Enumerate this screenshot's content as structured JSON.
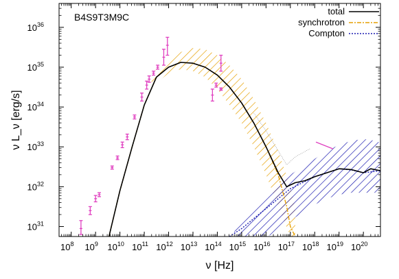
{
  "chart_data": {
    "type": "line",
    "annotation": "B4S9T3M9C",
    "xlabel": "ν [Hz]",
    "ylabel": "ν L_ν [erg/s]",
    "xscale": "log",
    "yscale": "log",
    "xlim_log10": [
      7.5,
      20.7
    ],
    "ylim_log10": [
      30.75,
      36.6
    ],
    "xticks_log10": [
      8,
      9,
      10,
      11,
      12,
      13,
      14,
      15,
      16,
      17,
      18,
      19,
      20
    ],
    "yticks_log10": [
      31,
      32,
      33,
      34,
      35,
      36
    ],
    "tick_base": "10",
    "grid": false,
    "legend_position": "top-right",
    "colors": {
      "total": "#000000",
      "synchrotron": "#e69f00",
      "compton": "#1a1ab0",
      "data": "#e040c0",
      "hatch_sync": "#e69f00",
      "hatch_compton": "#1a1ab0"
    },
    "series": [
      {
        "name": "total",
        "style": "solid",
        "x_log10": [
          9.55,
          10.0,
          10.5,
          11.0,
          11.5,
          12.0,
          12.5,
          13.0,
          13.5,
          14.0,
          14.5,
          15.0,
          15.5,
          16.0,
          16.5,
          16.85,
          17.2,
          17.6,
          18.0,
          18.5,
          19.0,
          19.5,
          20.0,
          20.3,
          20.7
        ],
        "y_log10": [
          30.75,
          31.9,
          33.0,
          34.05,
          34.75,
          35.0,
          35.12,
          35.1,
          35.0,
          34.8,
          34.5,
          34.1,
          33.6,
          33.0,
          32.35,
          32.0,
          32.1,
          32.15,
          32.25,
          32.35,
          32.45,
          32.43,
          32.35,
          32.45,
          32.4
        ]
      },
      {
        "name": "synchrotron",
        "style": "dash-dot",
        "x_log10": [
          9.55,
          10.0,
          10.5,
          11.0,
          11.5,
          12.0,
          12.5,
          13.0,
          13.5,
          14.0,
          14.5,
          15.0,
          15.5,
          16.0,
          16.5,
          16.85,
          17.0,
          17.2
        ],
        "y_log10": [
          30.75,
          31.9,
          33.0,
          34.05,
          34.75,
          35.0,
          35.12,
          35.1,
          35.0,
          34.8,
          34.5,
          34.1,
          33.6,
          33.0,
          32.3,
          31.5,
          31.0,
          30.75
        ]
      },
      {
        "name": "Compton",
        "style": "dotted",
        "x_log10": [
          14.5,
          15.0,
          15.5,
          16.0,
          16.5,
          17.0,
          17.5,
          18.0,
          18.5,
          19.0,
          19.5,
          20.0,
          20.7
        ],
        "y_log10": [
          30.75,
          30.95,
          31.2,
          31.45,
          31.7,
          31.95,
          32.1,
          32.25,
          32.35,
          32.45,
          32.42,
          32.35,
          32.4
        ]
      }
    ],
    "bands": [
      {
        "name": "synchrotron",
        "x_log10": [
          11.3,
          11.5,
          12.0,
          12.5,
          13.0,
          13.5,
          14.0,
          14.5,
          15.0,
          15.5,
          16.0,
          16.5,
          17.0,
          17.2
        ],
        "upper_log10": [
          34.8,
          34.95,
          35.2,
          35.38,
          35.48,
          35.45,
          35.3,
          35.05,
          34.7,
          34.2,
          33.6,
          32.9,
          32.0,
          31.5
        ],
        "lower_log10": [
          34.5,
          34.6,
          34.85,
          34.95,
          34.9,
          34.75,
          34.45,
          34.05,
          33.6,
          33.0,
          32.3,
          31.5,
          30.75,
          30.75
        ]
      },
      {
        "name": "Compton",
        "x_log10": [
          14.7,
          15.0,
          15.5,
          16.0,
          16.5,
          17.0,
          17.5,
          18.0,
          18.5,
          19.0,
          19.5,
          20.0,
          20.5,
          20.7
        ],
        "upper_log10": [
          30.95,
          31.15,
          31.45,
          31.75,
          32.05,
          32.3,
          32.5,
          32.7,
          32.9,
          33.05,
          33.15,
          33.2,
          33.15,
          33.1
        ],
        "lower_log10": [
          30.75,
          30.75,
          30.75,
          30.75,
          30.85,
          31.15,
          31.35,
          31.55,
          31.7,
          31.8,
          31.85,
          31.85,
          31.85,
          31.9
        ]
      }
    ],
    "dotted_connector": {
      "x_log10": [
        15.5,
        16.0,
        16.5,
        16.85,
        17.2,
        17.8
      ],
      "y_log10": [
        33.85,
        33.4,
        32.9,
        32.55,
        32.75,
        32.95
      ]
    },
    "points": [
      {
        "x": 8.4,
        "y": 30.95,
        "ylo": 30.8,
        "yhi": 31.15
      },
      {
        "x": 8.78,
        "y": 31.4,
        "ylo": 31.3,
        "yhi": 31.5
      },
      {
        "x": 9.0,
        "y": 31.7,
        "ylo": 31.62,
        "yhi": 31.78
      },
      {
        "x": 9.15,
        "y": 31.8,
        "ylo": 31.75,
        "yhi": 31.85
      },
      {
        "x": 9.68,
        "y": 32.48,
        "ylo": 32.44,
        "yhi": 32.52
      },
      {
        "x": 9.9,
        "y": 32.72,
        "ylo": 32.68,
        "yhi": 32.77
      },
      {
        "x": 10.1,
        "y": 33.05,
        "ylo": 32.98,
        "yhi": 33.12
      },
      {
        "x": 10.3,
        "y": 33.25,
        "ylo": 33.18,
        "yhi": 33.32
      },
      {
        "x": 10.6,
        "y": 33.75,
        "ylo": 33.7,
        "yhi": 33.8
      },
      {
        "x": 10.9,
        "y": 34.25,
        "ylo": 34.15,
        "yhi": 34.35
      },
      {
        "x": 11.1,
        "y": 34.55,
        "ylo": 34.45,
        "yhi": 34.65
      },
      {
        "x": 11.2,
        "y": 34.7,
        "ylo": 34.62,
        "yhi": 34.78
      },
      {
        "x": 11.38,
        "y": 34.85,
        "ylo": 34.8,
        "yhi": 34.9
      },
      {
        "x": 11.55,
        "y": 35.0,
        "ylo": 34.95,
        "yhi": 35.05
      },
      {
        "x": 11.8,
        "y": 35.25,
        "ylo": 35.05,
        "yhi": 35.45
      },
      {
        "x": 11.95,
        "y": 35.55,
        "ylo": 35.3,
        "yhi": 35.75
      },
      {
        "x": 13.8,
        "y": 34.3,
        "ylo": 34.15,
        "yhi": 34.45
      },
      {
        "x": 13.95,
        "y": 34.55,
        "ylo": 34.5,
        "yhi": 34.6
      },
      {
        "x": 14.15,
        "y": 34.45,
        "ylo": 34.42,
        "yhi": 34.48
      },
      {
        "x": 14.15,
        "y": 35.1,
        "ylo": 34.9,
        "yhi": 35.3
      }
    ],
    "segment": {
      "x_log10": [
        18.05,
        18.75
      ],
      "y_log10": [
        33.12,
        32.95
      ]
    }
  }
}
